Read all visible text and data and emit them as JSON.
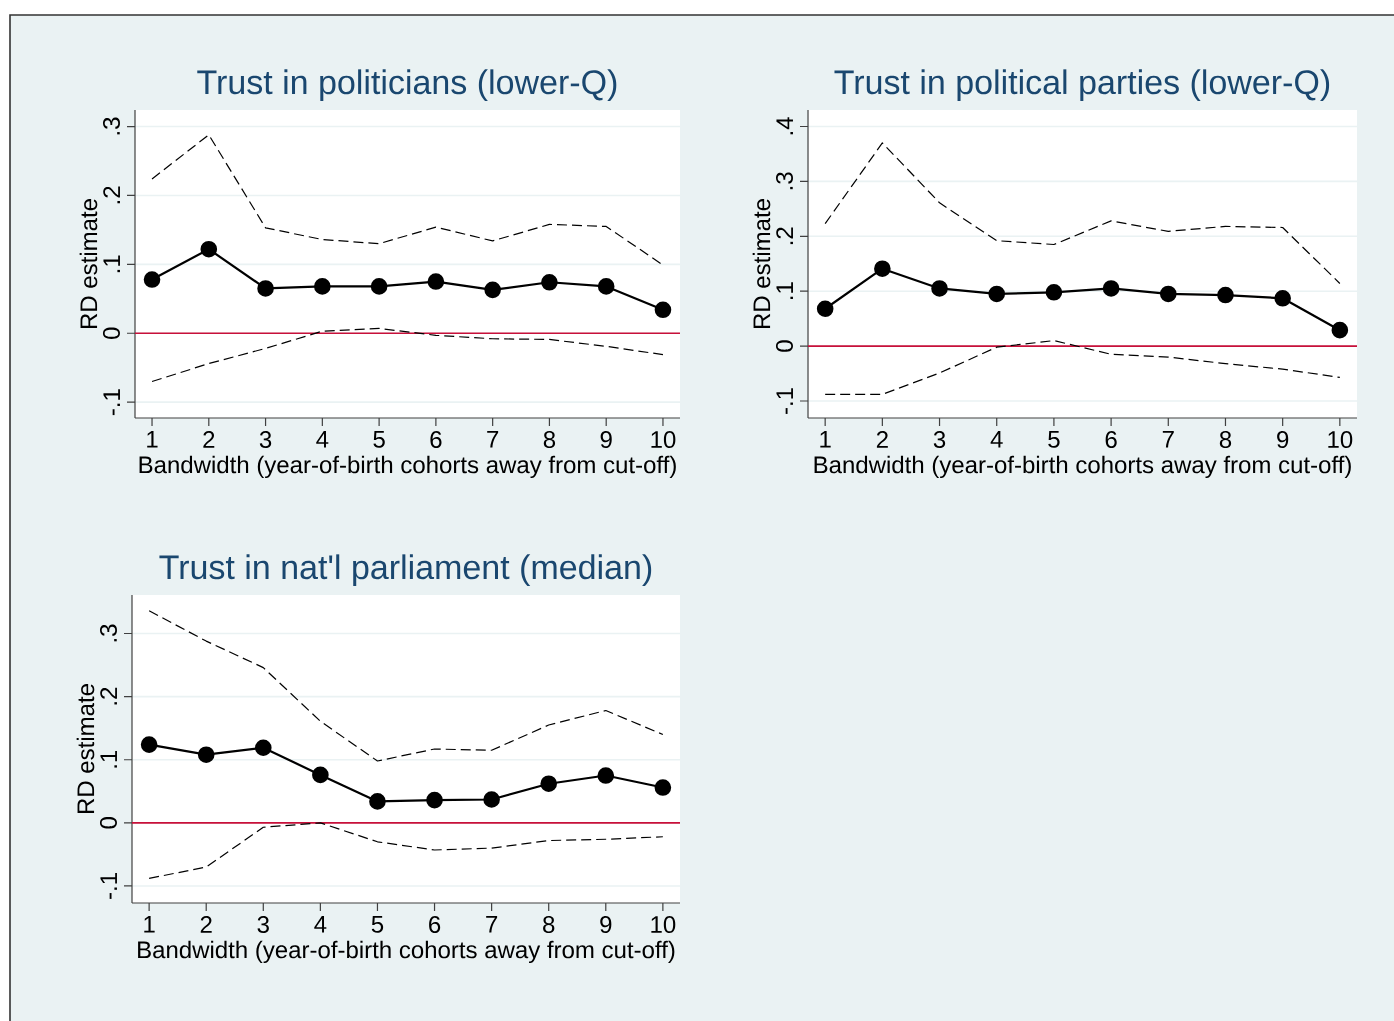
{
  "chart_data": [
    {
      "type": "line",
      "title": "Trust in politicians (lower-Q)",
      "xlabel": "Bandwidth (year-of-birth cohorts away from cut-off)",
      "ylabel": "RD estimate",
      "x": [
        1,
        2,
        3,
        4,
        5,
        6,
        7,
        8,
        9,
        10
      ],
      "series": [
        {
          "color": "#000000",
          "line_style": "solid",
          "marker": "circle",
          "values": [
            0.078,
            0.122,
            0.065,
            0.068,
            0.068,
            0.075,
            0.063,
            0.074,
            0.068,
            0.034
          ]
        },
        {
          "color": "#000000",
          "line_style": "dashed",
          "marker": "none",
          "values": [
            0.224,
            0.288,
            0.153,
            0.136,
            0.13,
            0.154,
            0.134,
            0.158,
            0.155,
            0.099
          ]
        },
        {
          "color": "#000000",
          "line_style": "dashed",
          "marker": "none",
          "values": [
            -0.07,
            -0.044,
            -0.022,
            0.003,
            0.007,
            -0.003,
            -0.008,
            -0.009,
            -0.019,
            -0.031
          ]
        }
      ],
      "xlim": [
        0.7,
        10.3
      ],
      "xticks": [
        1,
        2,
        3,
        4,
        5,
        6,
        7,
        8,
        9,
        10
      ],
      "ylim": [
        -0.123,
        0.324
      ],
      "yticks": [
        {
          "value": -0.1,
          "label": "-.1"
        },
        0,
        {
          "value": 0.1,
          "label": ".1"
        },
        {
          "value": 0.2,
          "label": ".2"
        },
        {
          "value": 0.3,
          "label": ".3"
        }
      ],
      "grid": "y",
      "ref_lines": [
        {
          "axis": "y",
          "value": 0,
          "color": "#c8103a"
        }
      ]
    },
    {
      "type": "line",
      "title": "Trust in political parties (lower-Q)",
      "xlabel": "Bandwidth (year-of-birth cohorts away from cut-off)",
      "ylabel": "RD estimate",
      "x": [
        1,
        2,
        3,
        4,
        5,
        6,
        7,
        8,
        9,
        10
      ],
      "series": [
        {
          "color": "#000000",
          "line_style": "solid",
          "marker": "circle",
          "values": [
            0.068,
            0.141,
            0.105,
            0.095,
            0.098,
            0.105,
            0.095,
            0.093,
            0.087,
            0.029
          ]
        },
        {
          "color": "#000000",
          "line_style": "dashed",
          "marker": "none",
          "values": [
            0.223,
            0.37,
            0.261,
            0.192,
            0.185,
            0.228,
            0.209,
            0.218,
            0.216,
            0.114
          ]
        },
        {
          "color": "#000000",
          "line_style": "dashed",
          "marker": "none",
          "values": [
            -0.088,
            -0.088,
            -0.049,
            -0.002,
            0.01,
            -0.015,
            -0.02,
            -0.032,
            -0.042,
            -0.057
          ]
        }
      ],
      "xlim": [
        0.7,
        10.3
      ],
      "xticks": [
        1,
        2,
        3,
        4,
        5,
        6,
        7,
        8,
        9,
        10
      ],
      "ylim": [
        -0.131,
        0.43
      ],
      "yticks": [
        {
          "value": -0.1,
          "label": "-.1"
        },
        0,
        {
          "value": 0.1,
          "label": ".1"
        },
        {
          "value": 0.2,
          "label": ".2"
        },
        {
          "value": 0.3,
          "label": ".3"
        },
        {
          "value": 0.4,
          "label": ".4"
        }
      ],
      "grid": "y",
      "ref_lines": [
        {
          "axis": "y",
          "value": 0,
          "color": "#c8103a"
        }
      ]
    },
    {
      "type": "line",
      "title": "Trust in nat'l parliament (median)",
      "xlabel": "Bandwidth (year-of-birth cohorts away from cut-off)",
      "ylabel": "RD estimate",
      "x": [
        1,
        2,
        3,
        4,
        5,
        6,
        7,
        8,
        9,
        10
      ],
      "series": [
        {
          "color": "#000000",
          "line_style": "solid",
          "marker": "circle",
          "values": [
            0.124,
            0.108,
            0.119,
            0.076,
            0.034,
            0.036,
            0.037,
            0.062,
            0.075,
            0.056
          ]
        },
        {
          "color": "#000000",
          "line_style": "dashed",
          "marker": "none",
          "values": [
            0.336,
            0.288,
            0.246,
            0.161,
            0.098,
            0.117,
            0.115,
            0.155,
            0.178,
            0.14
          ]
        },
        {
          "color": "#000000",
          "line_style": "dashed",
          "marker": "none",
          "values": [
            -0.088,
            -0.07,
            -0.007,
            0.0,
            -0.03,
            -0.043,
            -0.04,
            -0.028,
            -0.026,
            -0.022
          ]
        }
      ],
      "xlim": [
        0.7,
        10.3
      ],
      "xticks": [
        1,
        2,
        3,
        4,
        5,
        6,
        7,
        8,
        9,
        10
      ],
      "ylim": [
        -0.127,
        0.361
      ],
      "yticks": [
        {
          "value": -0.1,
          "label": "-.1"
        },
        0,
        {
          "value": 0.1,
          "label": ".1"
        },
        {
          "value": 0.2,
          "label": ".2"
        },
        {
          "value": 0.3,
          "label": ".3"
        }
      ],
      "grid": "y",
      "ref_lines": [
        {
          "axis": "y",
          "value": 0,
          "color": "#c8103a"
        }
      ]
    }
  ]
}
